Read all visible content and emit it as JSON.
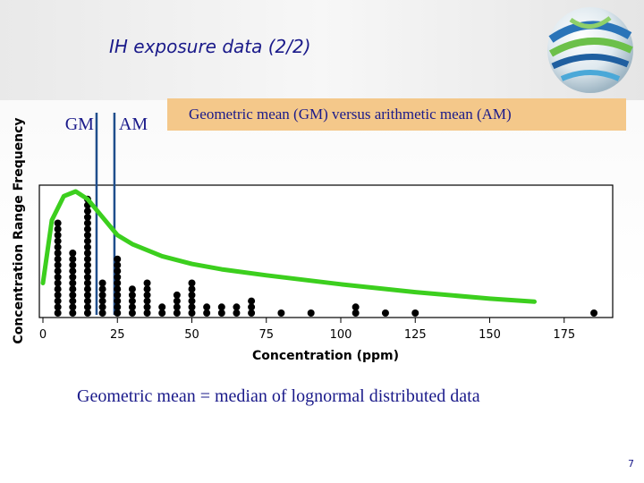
{
  "slide": {
    "title": "IH exposure data (2/2)",
    "callout": "Geometric mean (GM) versus arithmetic mean (AM)",
    "bottom_text": "Geometric mean = median of lognormal distributed data",
    "page_number": "7"
  },
  "chart_data": {
    "type": "scatter",
    "xlabel": "Concentration (ppm)",
    "ylabel": "Concentration Range Frequency",
    "xlim": [
      0,
      190
    ],
    "ylim": [
      0,
      21
    ],
    "xticks": [
      "0",
      "25",
      "50",
      "75",
      "100",
      "125",
      "150",
      "175"
    ],
    "grid": false,
    "series": [
      {
        "values": [
          {
            "x": 5,
            "count": 16
          },
          {
            "x": 10,
            "count": 11
          },
          {
            "x": 15,
            "count": 20
          },
          {
            "x": 20,
            "count": 6
          },
          {
            "x": 25,
            "count": 10
          },
          {
            "x": 30,
            "count": 5
          },
          {
            "x": 35,
            "count": 6
          },
          {
            "x": 40,
            "count": 2
          },
          {
            "x": 45,
            "count": 4
          },
          {
            "x": 50,
            "count": 6
          },
          {
            "x": 55,
            "count": 2
          },
          {
            "x": 60,
            "count": 2
          },
          {
            "x": 65,
            "count": 2
          },
          {
            "x": 70,
            "count": 3
          },
          {
            "x": 80,
            "count": 1
          },
          {
            "x": 90,
            "count": 1
          },
          {
            "x": 105,
            "count": 2
          },
          {
            "x": 115,
            "count": 1
          },
          {
            "x": 125,
            "count": 1
          },
          {
            "x": 185,
            "count": 1
          }
        ]
      },
      {
        "curve": [
          [
            0,
            5
          ],
          [
            3,
            15.5
          ],
          [
            7,
            19.5
          ],
          [
            11,
            20.3
          ],
          [
            15,
            19
          ],
          [
            20,
            16
          ],
          [
            25,
            13
          ],
          [
            30,
            11.5
          ],
          [
            40,
            9.5
          ],
          [
            50,
            8.2
          ],
          [
            60,
            7.3
          ],
          [
            75,
            6.3
          ],
          [
            100,
            4.8
          ],
          [
            125,
            3.5
          ],
          [
            150,
            2.4
          ],
          [
            165,
            1.9
          ]
        ]
      }
    ],
    "reference_lines": [
      {
        "label": "GM",
        "x": 18
      },
      {
        "label": "AM",
        "x": 24
      }
    ]
  }
}
